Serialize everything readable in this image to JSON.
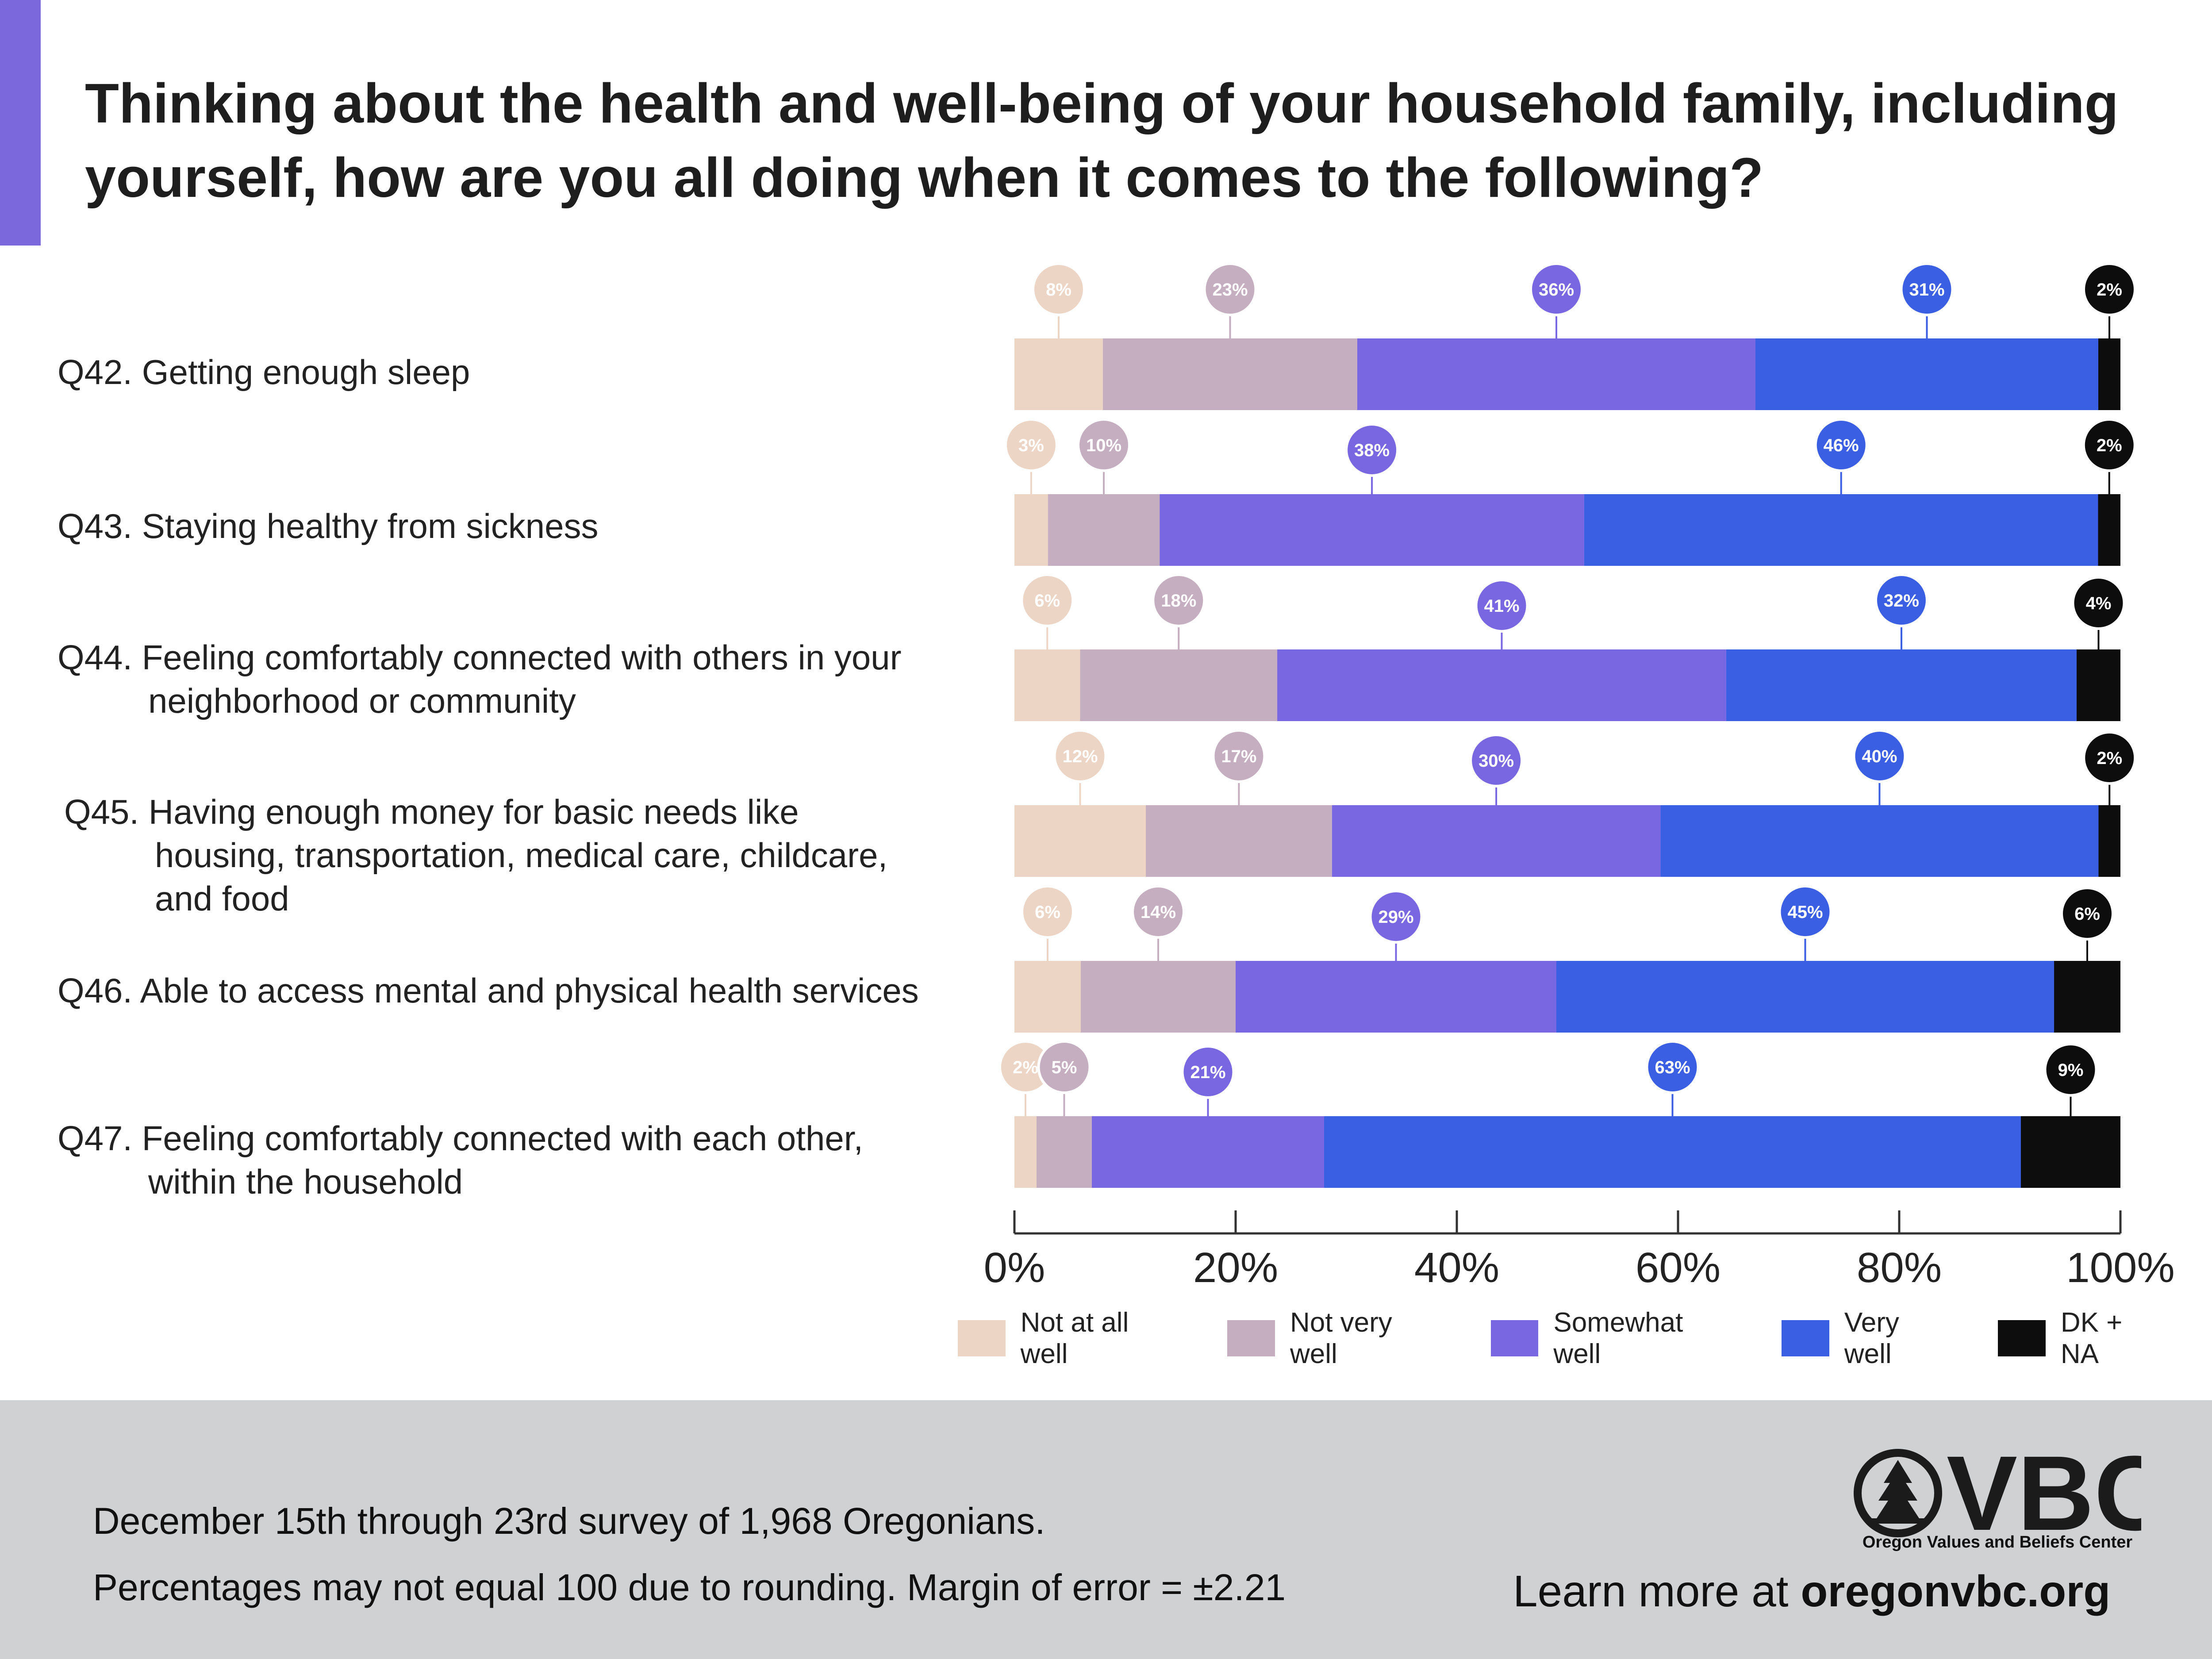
{
  "title": "Thinking about the health and well-being of your household family, including yourself, how are you all doing when it comes to the following?",
  "questions": [
    {
      "lines": [
        "Q42. Getting enough sleep"
      ]
    },
    {
      "lines": [
        "Q43. Staying healthy from sickness"
      ]
    },
    {
      "lines": [
        "Q44. Feeling comfortably connected with others in your",
        "neighborhood or community"
      ]
    },
    {
      "lines": [
        "Q45. Having enough money for basic needs like",
        "housing, transportation, medical care, childcare,",
        "and food"
      ]
    },
    {
      "lines": [
        "Q46. Able to access mental and physical health services"
      ]
    },
    {
      "lines": [
        "Q47. Feeling comfortably connected with each other,",
        "within the household"
      ]
    }
  ],
  "chart_data": {
    "type": "bar",
    "orientation": "horizontal",
    "stacked": true,
    "title": "Thinking about the health and well-being of your household family, including yourself, how are you all doing when it comes to the following?",
    "categories": [
      "Q42. Getting enough sleep",
      "Q43. Staying healthy from sickness",
      "Q44. Feeling comfortably connected with others in your neighborhood or community",
      "Q45. Having enough money for basic needs like housing, transportation, medical care, childcare, and food",
      "Q46. Able to access mental and physical health services",
      "Q47. Feeling comfortably connected with each other, within the household"
    ],
    "series": [
      {
        "name": "Not at all well",
        "color": "#edd5c5",
        "label_text": "#ffffff",
        "values": [
          8,
          3,
          6,
          12,
          6,
          2
        ]
      },
      {
        "name": "Not very well",
        "color": "#c6aec1",
        "label_text": "#ffffff",
        "values": [
          23,
          10,
          18,
          17,
          14,
          5
        ]
      },
      {
        "name": "Somewhat well",
        "color": "#7966e1",
        "label_text": "#ffffff",
        "values": [
          36,
          38,
          41,
          30,
          29,
          21
        ]
      },
      {
        "name": "Very well",
        "color": "#3b5fe3",
        "label_text": "#ffffff",
        "values": [
          31,
          46,
          32,
          40,
          45,
          63
        ]
      },
      {
        "name": "DK + NA",
        "color": "#0d0d0d",
        "label_text": "#ffffff",
        "values": [
          2,
          2,
          4,
          2,
          6,
          9
        ]
      }
    ],
    "data_labels": [
      [
        "8%",
        "23%",
        "36%",
        "31%",
        "2%"
      ],
      [
        "3%",
        "10%",
        "38%",
        "46%",
        "2%"
      ],
      [
        "6%",
        "18%",
        "41%",
        "32%",
        "4%"
      ],
      [
        "12%",
        "17%",
        "30%",
        "40%",
        "2%"
      ],
      [
        "6%",
        "14%",
        "29%",
        "45%",
        "6%"
      ],
      [
        "2%",
        "5%",
        "21%",
        "63%",
        "9%"
      ]
    ],
    "xlim": [
      0,
      100
    ],
    "xticks": [
      "0%",
      "20%",
      "40%",
      "60%",
      "80%",
      "100%"
    ],
    "xlabel": "",
    "ylabel": "",
    "grid": false,
    "legend_position": "bottom"
  },
  "footer": {
    "line1": "December 15th through 23rd survey of 1,968 Oregonians.",
    "line2": "Percentages may not equal 100 due to rounding.   Margin of error = ±2.21",
    "logo_letters": "VBC",
    "logo_text": "Oregon Values and Beliefs Center",
    "learn_prefix": "Learn more at ",
    "learn_link": "oregonvbc.org"
  },
  "colors": {
    "accent": "#7b68dd",
    "footer_bg": "#d0d1d3"
  }
}
